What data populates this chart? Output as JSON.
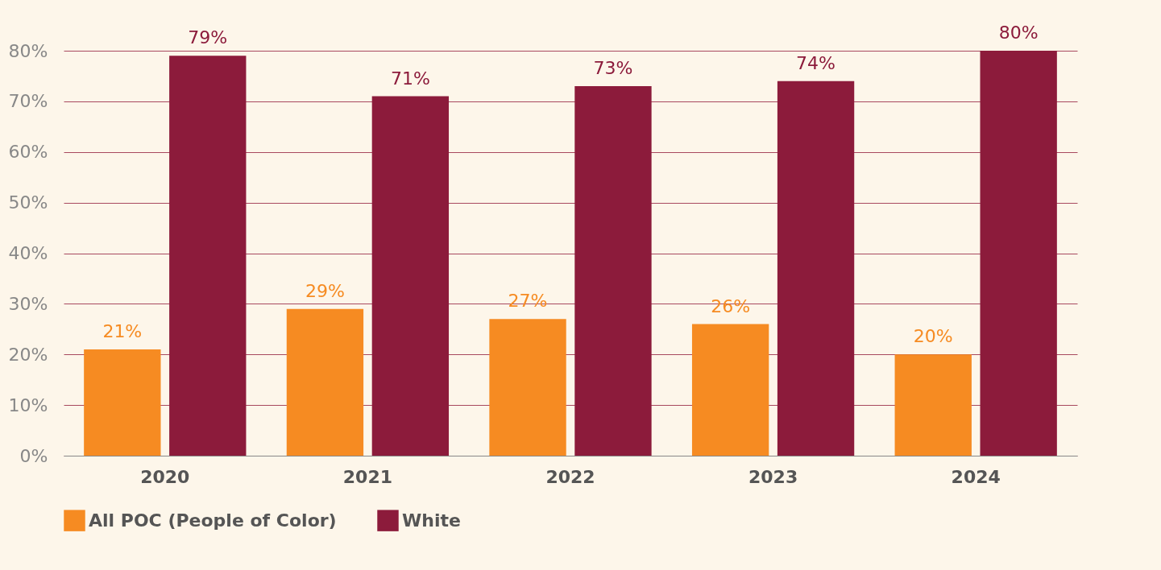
{
  "chart_data": {
    "type": "bar",
    "categories": [
      "2020",
      "2021",
      "2022",
      "2023",
      "2024"
    ],
    "series": [
      {
        "name": "All POC (People of Color)",
        "color": "#f68b22",
        "values": [
          21,
          29,
          27,
          26,
          20
        ],
        "value_labels": [
          "21%",
          "29%",
          "27%",
          "26%",
          "20%"
        ]
      },
      {
        "name": "White",
        "color": "#8c1b3b",
        "values": [
          79,
          71,
          73,
          74,
          80
        ],
        "value_labels": [
          "79%",
          "71%",
          "73%",
          "74%",
          "80%"
        ]
      }
    ],
    "ylim": [
      0,
      80
    ],
    "yticks": [
      {
        "value": 0,
        "label": "0%"
      },
      {
        "value": 10,
        "label": "10%"
      },
      {
        "value": 20,
        "label": "20%"
      },
      {
        "value": 30,
        "label": "30%"
      },
      {
        "value": 40,
        "label": "40%"
      },
      {
        "value": 50,
        "label": "50%"
      },
      {
        "value": 60,
        "label": "60%"
      },
      {
        "value": 70,
        "label": "70%"
      },
      {
        "value": 80,
        "label": "80%"
      }
    ],
    "grid": "y",
    "legend": "bottom left"
  }
}
